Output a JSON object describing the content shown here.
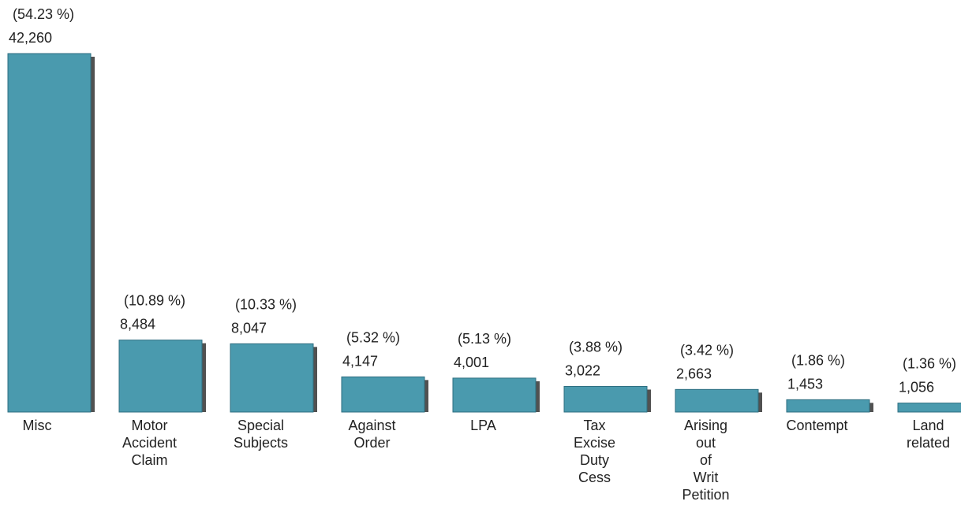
{
  "chart_data": {
    "type": "bar",
    "categories": [
      "Misc",
      "Motor Accident Claim",
      "Special Subjects",
      "Against Order",
      "LPA",
      "Tax Excise Duty Cess",
      "Arising out of Writ Petition",
      "Contempt",
      "Land related"
    ],
    "category_lines": [
      [
        "Misc"
      ],
      [
        "Motor",
        "Accident",
        "Claim"
      ],
      [
        "Special",
        "Subjects"
      ],
      [
        "Against",
        "Order"
      ],
      [
        "LPA"
      ],
      [
        "Tax",
        "Excise",
        "Duty",
        "Cess"
      ],
      [
        "Arising",
        "out",
        "of",
        "Writ",
        "Petition"
      ],
      [
        "Contempt"
      ],
      [
        "Land",
        "related"
      ]
    ],
    "values": [
      42260,
      8484,
      8047,
      4147,
      4001,
      3022,
      2663,
      1453,
      1056
    ],
    "value_labels": [
      "42,260",
      "8,484",
      "8,047",
      "4,147",
      "4,001",
      "3,022",
      "2,663",
      "1,453",
      "1,056"
    ],
    "percent_labels": [
      "(54.23 %)",
      "(10.89 %)",
      "(10.33 %)",
      "(5.32 %)",
      "(5.13 %)",
      "(3.88 %)",
      "(3.42 %)",
      "(1.86 %)",
      "(1.36 %)"
    ],
    "title": "",
    "xlabel": "",
    "ylabel": "",
    "ylim": [
      0,
      42260
    ],
    "grid": false,
    "bar_color": "#4a9aae",
    "bar_edge_color": "#2e6e80",
    "shadow_color": "#333333"
  }
}
